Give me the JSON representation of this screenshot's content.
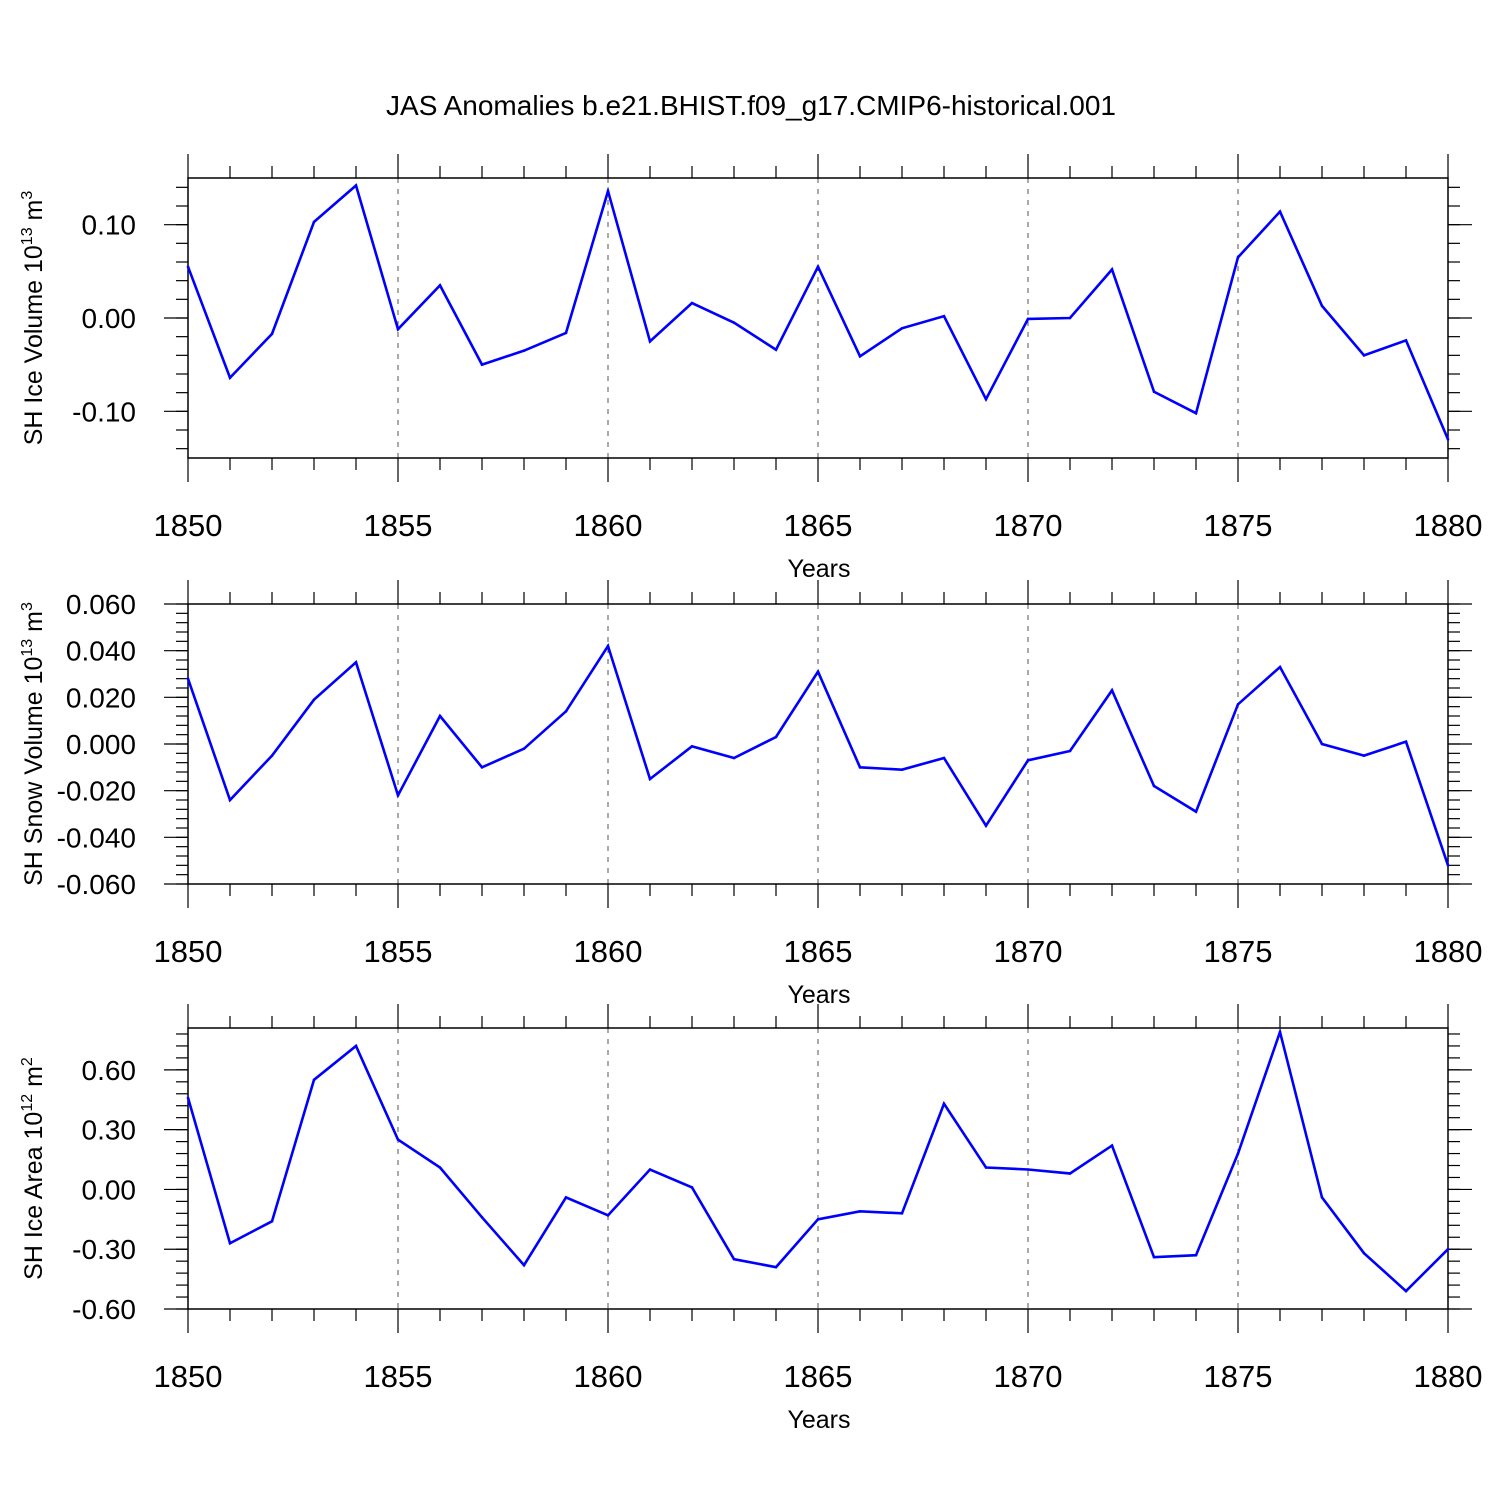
{
  "figure": {
    "title": "JAS Anomalies b.e21.BHIST.f09_g17.CMIP6-historical.001"
  },
  "chart_data": [
    {
      "type": "line",
      "xlabel": "Years",
      "ylabel": "SH Ice Volume 10",
      "ylabel_sup": "13",
      "ylabel_unit": " m",
      "ylabel_unit_sup": "3",
      "xlim": [
        1850,
        1880
      ],
      "ylim": [
        -0.15,
        0.15
      ],
      "x_ticks": [
        "1850",
        "1855",
        "1860",
        "1865",
        "1870",
        "1875",
        "1880"
      ],
      "y_ticks": [
        0.1,
        0.0,
        -0.1
      ],
      "y_tick_labels": [
        "0.10",
        "0.00",
        "-0.10"
      ],
      "y_minor_step": 0.02,
      "grid": "dashed vertical at major x ticks",
      "line_color": "#0000ff",
      "x": [
        1850,
        1851,
        1852,
        1853,
        1854,
        1855,
        1856,
        1857,
        1858,
        1859,
        1860,
        1861,
        1862,
        1863,
        1864,
        1865,
        1866,
        1867,
        1868,
        1869,
        1870,
        1871,
        1872,
        1873,
        1874,
        1875,
        1876,
        1877,
        1878,
        1879,
        1880
      ],
      "values": [
        0.055,
        -0.064,
        -0.017,
        0.103,
        0.142,
        -0.012,
        0.035,
        -0.05,
        -0.035,
        -0.016,
        0.136,
        -0.025,
        0.016,
        -0.005,
        -0.034,
        0.055,
        -0.041,
        -0.011,
        0.002,
        -0.087,
        -0.001,
        0.0,
        0.052,
        -0.079,
        -0.102,
        0.065,
        0.114,
        0.013,
        -0.04,
        -0.024,
        -0.13
      ]
    },
    {
      "type": "line",
      "xlabel": "Years",
      "ylabel": "SH Snow Volume 10",
      "ylabel_sup": "13",
      "ylabel_unit": " m",
      "ylabel_unit_sup": "3",
      "xlim": [
        1850,
        1880
      ],
      "ylim": [
        -0.06,
        0.06
      ],
      "x_ticks": [
        "1850",
        "1855",
        "1860",
        "1865",
        "1870",
        "1875",
        "1880"
      ],
      "y_ticks": [
        0.06,
        0.04,
        0.02,
        0.0,
        -0.02,
        -0.04,
        -0.06
      ],
      "y_tick_labels": [
        "0.060",
        "0.040",
        "0.020",
        "0.000",
        "-0.020",
        "-0.040",
        "-0.060"
      ],
      "y_minor_step": 0.004,
      "grid": "dashed vertical at major x ticks",
      "line_color": "#0000ff",
      "x": [
        1850,
        1851,
        1852,
        1853,
        1854,
        1855,
        1856,
        1857,
        1858,
        1859,
        1860,
        1861,
        1862,
        1863,
        1864,
        1865,
        1866,
        1867,
        1868,
        1869,
        1870,
        1871,
        1872,
        1873,
        1874,
        1875,
        1876,
        1877,
        1878,
        1879,
        1880
      ],
      "values": [
        0.028,
        -0.024,
        -0.005,
        0.019,
        0.035,
        -0.022,
        0.012,
        -0.01,
        -0.002,
        0.014,
        0.042,
        -0.015,
        -0.001,
        -0.006,
        0.003,
        0.031,
        -0.01,
        -0.011,
        -0.006,
        -0.035,
        -0.007,
        -0.003,
        0.023,
        -0.018,
        -0.029,
        0.017,
        0.033,
        0.0,
        -0.005,
        0.001,
        -0.052
      ]
    },
    {
      "type": "line",
      "xlabel": "Years",
      "ylabel": "SH Ice Area 10",
      "ylabel_sup": "12",
      "ylabel_unit": " m",
      "ylabel_unit_sup": "2",
      "xlim": [
        1850,
        1880
      ],
      "ylim": [
        -0.6,
        0.81
      ],
      "x_ticks": [
        "1850",
        "1855",
        "1860",
        "1865",
        "1870",
        "1875",
        "1880"
      ],
      "y_ticks": [
        0.6,
        0.3,
        0.0,
        -0.3,
        -0.6
      ],
      "y_tick_labels": [
        "0.60",
        "0.30",
        "0.00",
        "-0.30",
        "-0.60"
      ],
      "y_minor_step": 0.06,
      "grid": "dashed vertical at major x ticks",
      "line_color": "#0000ff",
      "x": [
        1850,
        1851,
        1852,
        1853,
        1854,
        1855,
        1856,
        1857,
        1858,
        1859,
        1860,
        1861,
        1862,
        1863,
        1864,
        1865,
        1866,
        1867,
        1868,
        1869,
        1870,
        1871,
        1872,
        1873,
        1874,
        1875,
        1876,
        1877,
        1878,
        1879,
        1880
      ],
      "values": [
        0.46,
        -0.27,
        -0.16,
        0.55,
        0.72,
        0.25,
        0.11,
        -0.14,
        -0.38,
        -0.04,
        -0.13,
        0.1,
        0.01,
        -0.35,
        -0.39,
        -0.15,
        -0.11,
        -0.12,
        0.43,
        0.11,
        0.1,
        0.08,
        0.22,
        -0.34,
        -0.33,
        0.18,
        0.79,
        -0.04,
        -0.32,
        -0.51,
        -0.3
      ]
    }
  ]
}
